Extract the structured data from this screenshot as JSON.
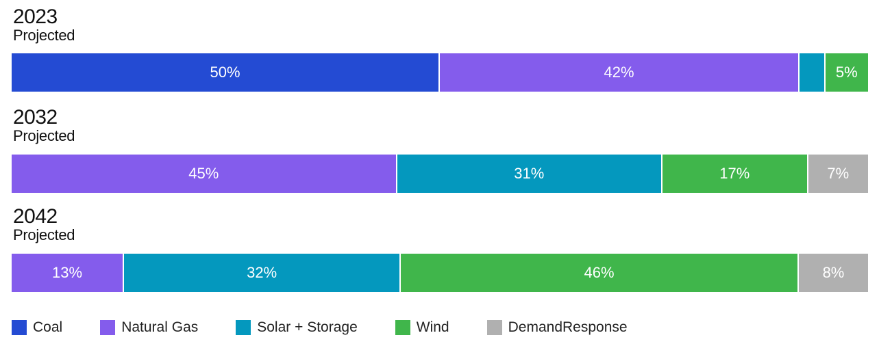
{
  "chart_data": {
    "type": "bar",
    "orientation": "horizontal",
    "stacked": true,
    "percent": true,
    "categories": [
      "2023",
      "2032",
      "2042"
    ],
    "category_subtitles": [
      "Projected",
      "Projected",
      "Projected"
    ],
    "series": [
      {
        "name": "Coal",
        "color": "#244bd3",
        "values": [
          50,
          0,
          0
        ],
        "labels": [
          "50%",
          "",
          ""
        ]
      },
      {
        "name": "Natural Gas",
        "color": "#845cec",
        "values": [
          42,
          45,
          13
        ],
        "labels": [
          "42%",
          "45%",
          "13%"
        ]
      },
      {
        "name": "Solar + Storage",
        "color": "#0498be",
        "values": [
          3,
          31,
          32
        ],
        "labels": [
          "",
          "31%",
          "32%"
        ]
      },
      {
        "name": "Wind",
        "color": "#40b64b",
        "values": [
          5,
          17,
          46
        ],
        "labels": [
          "5%",
          "17%",
          "46%"
        ]
      },
      {
        "name": "DemandResponse",
        "color": "#b0b0b0",
        "values": [
          0,
          7,
          8
        ],
        "labels": [
          "",
          "7%",
          "8%"
        ]
      }
    ],
    "legend_position": "bottom-left"
  }
}
